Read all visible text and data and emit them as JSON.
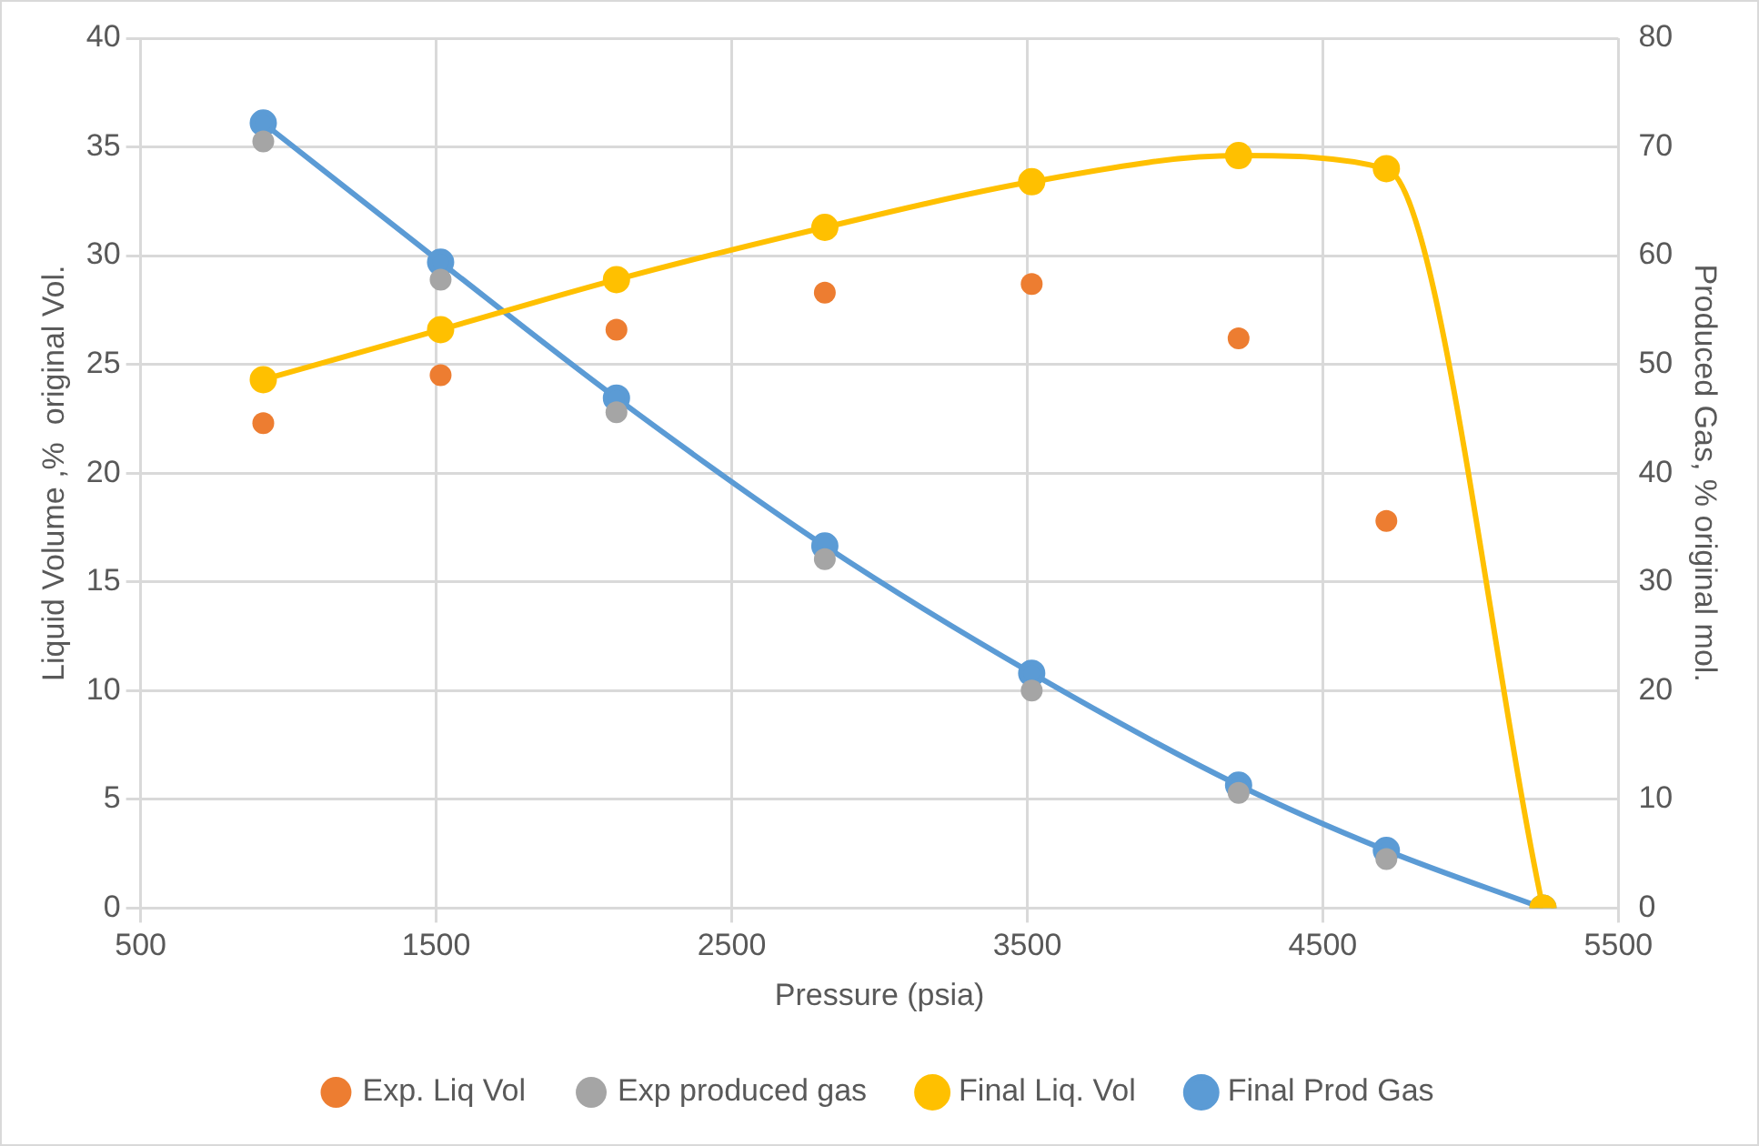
{
  "chart_data": {
    "type": "line",
    "xlabel": "Pressure (psia)",
    "ylabel": "Liquid Volume ,%  original Vol.",
    "y2label": "Produced Gas, % original mol.",
    "x": [
      915,
      1515,
      2110,
      2815,
      3515,
      4215,
      4715,
      5245
    ],
    "xlim": [
      500,
      5500
    ],
    "xticks": [
      500,
      1500,
      2500,
      3500,
      4500,
      5500
    ],
    "ylim": [
      0,
      40
    ],
    "yticks": [
      0,
      5,
      10,
      15,
      20,
      25,
      30,
      35,
      40
    ],
    "y2lim": [
      0,
      80
    ],
    "y2ticks": [
      0,
      10,
      20,
      30,
      40,
      50,
      60,
      70,
      80
    ],
    "grid": true,
    "legend": "bottom",
    "marker": "circle",
    "series": [
      {
        "name": "Final Liq. Vol",
        "color": "#ffc000",
        "values": [
          24.3,
          26.6,
          28.9,
          31.3,
          33.4,
          34.6,
          34.0,
          0
        ]
      },
      {
        "name": "Exp. Liq Vol",
        "type": "scatter",
        "color": "#ed7d31",
        "x": [
          915,
          1515,
          2110,
          2815,
          3515,
          4215,
          4715
        ],
        "values": [
          22.3,
          24.5,
          26.6,
          28.3,
          28.7,
          26.2,
          17.8
        ]
      },
      {
        "name": "Final Prod Gas",
        "axis": "y2",
        "color": "#5b9bd5",
        "values": [
          72.2,
          59.4,
          46.9,
          33.3,
          21.6,
          11.3,
          5.3,
          0
        ]
      },
      {
        "name": "Exp produced gas",
        "type": "scatter",
        "axis": "y2",
        "color": "#a5a5a5",
        "x": [
          915,
          1515,
          2110,
          2815,
          3515,
          4215,
          4715
        ],
        "values": [
          70.5,
          57.8,
          45.6,
          32.1,
          20.0,
          10.6,
          4.5
        ]
      }
    ]
  }
}
